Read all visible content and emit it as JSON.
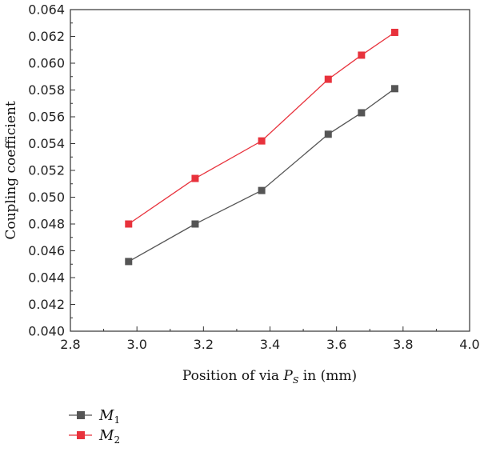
{
  "chart_data": {
    "type": "line",
    "xlabel_prefix": "Position of via ",
    "xlabel_var": "P",
    "xlabel_var_sub": "S",
    "xlabel_suffix": " in (mm)",
    "ylabel": "Coupling coefficient",
    "xlim": [
      2.8,
      4.0
    ],
    "ylim": [
      0.04,
      0.064
    ],
    "xticks": [
      2.8,
      3.0,
      3.2,
      3.4,
      3.6,
      3.8,
      4.0
    ],
    "xtick_labels": [
      "2.8",
      "3.0",
      "3.2",
      "3.4",
      "3.6",
      "3.8",
      "4.0"
    ],
    "yticks": [
      0.04,
      0.042,
      0.044,
      0.046,
      0.048,
      0.05,
      0.052,
      0.054,
      0.056,
      0.058,
      0.06,
      0.062,
      0.064
    ],
    "ytick_labels": [
      "0.040",
      "0.042",
      "0.044",
      "0.046",
      "0.048",
      "0.050",
      "0.052",
      "0.054",
      "0.056",
      "0.058",
      "0.060",
      "0.062",
      "0.064"
    ],
    "x": [
      2.975,
      3.175,
      3.375,
      3.575,
      3.675,
      3.775
    ],
    "series": [
      {
        "name_base": "M",
        "name_sub": "1",
        "color": "#555555",
        "marker": "square",
        "values": [
          0.0452,
          0.048,
          0.0505,
          0.0547,
          0.0563,
          0.0581
        ]
      },
      {
        "name_base": "M",
        "name_sub": "2",
        "color": "#e8323c",
        "marker": "square",
        "values": [
          0.048,
          0.0514,
          0.0542,
          0.0588,
          0.0606,
          0.0623
        ]
      }
    ],
    "grid": false,
    "legend_position": "bottom-left"
  }
}
